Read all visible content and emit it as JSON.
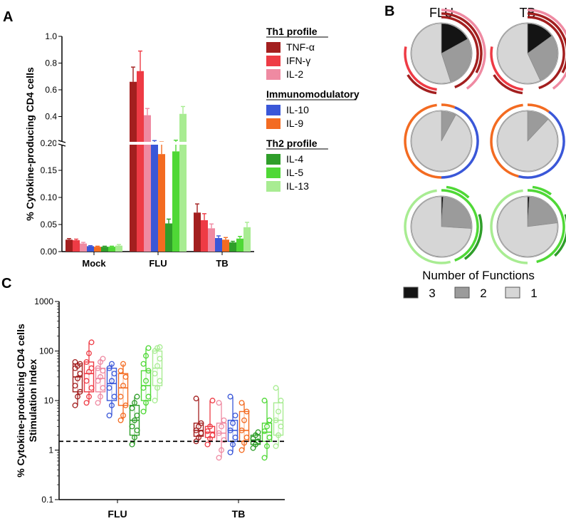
{
  "colors": {
    "tnf": "#a31f1f",
    "ifn": "#ee3b45",
    "il2": "#ef8aa2",
    "il10": "#3a57d8",
    "il9": "#f36b21",
    "il4": "#2f9e2a",
    "il5": "#4fd836",
    "il13": "#a8ec92",
    "f3": "#141414",
    "f2": "#9b9b9b",
    "f1": "#d6d6d6"
  },
  "chart_data": [
    {
      "panel": "A",
      "type": "bar",
      "ylabel": "% Cytokine-producing  CD4 cells",
      "categories": [
        "Mock",
        "FLU",
        "TB"
      ],
      "axis_break": 0.2,
      "lower_ticks": [
        "0.00",
        "0.05",
        "0.10",
        "0.15",
        "0.20"
      ],
      "upper_ticks": [
        "0.4",
        "0.6",
        "0.8",
        "1.0"
      ],
      "legend_groups": [
        {
          "title": "Th1 profile",
          "items": [
            "TNF-α",
            "IFN-γ",
            "IL-2"
          ]
        },
        {
          "title": "Immunomodulatory",
          "items": [
            "IL-10",
            "IL-9"
          ]
        },
        {
          "title": "Th2 profile",
          "items": [
            "IL-4",
            "IL-5",
            "IL-13"
          ]
        }
      ],
      "series": [
        {
          "name": "TNF-α",
          "values": [
            0.022,
            0.66,
            0.072
          ],
          "errors": [
            0.002,
            0.11,
            0.016
          ]
        },
        {
          "name": "IFN-γ",
          "values": [
            0.021,
            0.74,
            0.058
          ],
          "errors": [
            0.002,
            0.15,
            0.012
          ]
        },
        {
          "name": "IL-2",
          "values": [
            0.015,
            0.41,
            0.043
          ],
          "errors": [
            0.002,
            0.05,
            0.008
          ]
        },
        {
          "name": "IL-10",
          "values": [
            0.01,
            0.2,
            0.025
          ],
          "errors": [
            0.001,
            0.02,
            0.004
          ]
        },
        {
          "name": "IL-9",
          "values": [
            0.009,
            0.18,
            0.022
          ],
          "errors": [
            0.001,
            0.03,
            0.004
          ]
        },
        {
          "name": "IL-4",
          "values": [
            0.009,
            0.052,
            0.017
          ],
          "errors": [
            0.001,
            0.008,
            0.002
          ]
        },
        {
          "name": "IL-5",
          "values": [
            0.009,
            0.185,
            0.024
          ],
          "errors": [
            0.001,
            0.038,
            0.004
          ]
        },
        {
          "name": "IL-13",
          "values": [
            0.011,
            0.42,
            0.045
          ],
          "errors": [
            0.002,
            0.055,
            0.009
          ]
        }
      ]
    },
    {
      "panel": "B",
      "type": "pie",
      "columns": [
        "FLU",
        "TB"
      ],
      "rows": [
        "Th1 profile",
        "Immunomodulatory",
        "Th2 profile"
      ],
      "legend_title": "Number of Functions",
      "legend_items": [
        "3",
        "2",
        "1"
      ],
      "pies": [
        {
          "stim": "FLU",
          "row": "Th1 profile",
          "slices": [
            0.17,
            0.28,
            0.55
          ],
          "arcs": [
            {
              "name": "TNF-α",
              "color": "tnf",
              "level": 1,
              "start": 0.0,
              "end": 0.44
            },
            {
              "name": "IFN-γ",
              "color": "tnf",
              "level": 2,
              "start": 0.0,
              "end": 0.33
            },
            {
              "name": "IL-2",
              "color": "il2",
              "level": 3,
              "start": 0.0,
              "end": 0.4
            },
            {
              "name": "IFN-γ",
              "color": "ifn",
              "level": 1,
              "start": 0.52,
              "end": 0.78
            },
            {
              "name": "TNF-α",
              "color": "tnf",
              "level": 2,
              "start": 0.52,
              "end": 0.66
            }
          ]
        },
        {
          "stim": "TB",
          "row": "Th1 profile",
          "slices": [
            0.15,
            0.28,
            0.57
          ],
          "arcs": [
            {
              "name": "TNF-α",
              "color": "tnf",
              "level": 1,
              "start": 0.0,
              "end": 0.45
            },
            {
              "name": "IFN-γ",
              "color": "tnf",
              "level": 2,
              "start": 0.0,
              "end": 0.33
            },
            {
              "name": "IL-2",
              "color": "il2",
              "level": 3,
              "start": 0.0,
              "end": 0.4
            },
            {
              "name": "IFN-γ",
              "color": "ifn",
              "level": 1,
              "start": 0.52,
              "end": 0.78
            },
            {
              "name": "TNF-α",
              "color": "tnf",
              "level": 2,
              "start": 0.52,
              "end": 0.66
            }
          ]
        },
        {
          "stim": "FLU",
          "row": "Immunomodulatory",
          "slices": [
            0.0,
            0.08,
            0.92
          ],
          "arcs": [
            {
              "name": "IL-9",
              "color": "il9",
              "level": 1,
              "start": 0.0,
              "end": 0.06
            },
            {
              "name": "IL-10",
              "color": "il10",
              "level": 1,
              "start": 0.06,
              "end": 0.5
            },
            {
              "name": "IL-9",
              "color": "il9",
              "level": 1,
              "start": 0.5,
              "end": 0.98
            }
          ]
        },
        {
          "stim": "TB",
          "row": "Immunomodulatory",
          "slices": [
            0.0,
            0.12,
            0.88
          ],
          "arcs": [
            {
              "name": "IL-9",
              "color": "il9",
              "level": 1,
              "start": 0.0,
              "end": 0.1
            },
            {
              "name": "IL-10",
              "color": "il10",
              "level": 1,
              "start": 0.1,
              "end": 0.54
            },
            {
              "name": "IL-9",
              "color": "il9",
              "level": 1,
              "start": 0.54,
              "end": 0.98
            }
          ]
        },
        {
          "stim": "FLU",
          "row": "Th2 profile",
          "slices": [
            0.01,
            0.25,
            0.74
          ],
          "arcs": [
            {
              "name": "IL-5",
              "color": "il5",
              "level": 1,
              "start": 0.0,
              "end": 0.44
            },
            {
              "name": "IL-4",
              "color": "il4",
              "level": 2,
              "start": 0.2,
              "end": 0.4
            },
            {
              "name": "IL-13",
              "color": "il13",
              "level": 1,
              "start": 0.46,
              "end": 0.98
            },
            {
              "name": "IL-5",
              "color": "il5",
              "level": 2,
              "start": 0.02,
              "end": 0.12
            }
          ]
        },
        {
          "stim": "TB",
          "row": "Th2 profile",
          "slices": [
            0.01,
            0.22,
            0.77
          ],
          "arcs": [
            {
              "name": "IL-5",
              "color": "il5",
              "level": 1,
              "start": 0.0,
              "end": 0.46
            },
            {
              "name": "IL-4",
              "color": "il4",
              "level": 2,
              "start": 0.2,
              "end": 0.38
            },
            {
              "name": "IL-13",
              "color": "il13",
              "level": 1,
              "start": 0.5,
              "end": 0.98
            },
            {
              "name": "IL-5",
              "color": "il5",
              "level": 2,
              "start": 0.02,
              "end": 0.1
            }
          ]
        }
      ]
    },
    {
      "panel": "C",
      "type": "scatter",
      "yscale": "log",
      "ylabel_line1": "% Cytokine-producing  CD4 cells",
      "ylabel_line2": "Stimulation Index",
      "ylim": [
        0.1,
        1000
      ],
      "yticks": [
        "0.1",
        "1",
        "10",
        "100",
        "1000"
      ],
      "categories": [
        "FLU",
        "TB"
      ],
      "reference_line": 1.5,
      "groups": [
        {
          "stim": "FLU",
          "boxes": [
            {
              "name": "TNF-α",
              "min": 8,
              "q1": 15,
              "median": 30,
              "q3": 55,
              "max": 60,
              "points": [
                8,
                12,
                15,
                20,
                28,
                35,
                45,
                50,
                55,
                60
              ]
            },
            {
              "name": "IFN-γ",
              "min": 9,
              "q1": 15,
              "median": 35,
              "q3": 60,
              "max": 150,
              "points": [
                9,
                12,
                18,
                25,
                38,
                45,
                60,
                90,
                150
              ]
            },
            {
              "name": "IL-2",
              "min": 9,
              "q1": 15,
              "median": 28,
              "q3": 45,
              "max": 70,
              "points": [
                9,
                12,
                18,
                25,
                30,
                40,
                45,
                60,
                70
              ]
            },
            {
              "name": "IL-10",
              "min": 5,
              "q1": 10,
              "median": 22,
              "q3": 45,
              "max": 55,
              "points": [
                5,
                8,
                12,
                18,
                25,
                35,
                45,
                55
              ]
            },
            {
              "name": "IL-9",
              "min": 4,
              "q1": 8,
              "median": 18,
              "q3": 35,
              "max": 55,
              "points": [
                4,
                5,
                8,
                12,
                20,
                30,
                40,
                55
              ]
            },
            {
              "name": "IL-4",
              "min": 1.3,
              "q1": 2,
              "median": 4,
              "q3": 8,
              "max": 12,
              "points": [
                1.3,
                1.8,
                2.5,
                3,
                4,
                5,
                7,
                9,
                12
              ]
            },
            {
              "name": "IL-5",
              "min": 6,
              "q1": 10,
              "median": 20,
              "q3": 40,
              "max": 115,
              "points": [
                6,
                9,
                12,
                18,
                25,
                40,
                55,
                80,
                115
              ]
            },
            {
              "name": "IL-13",
              "min": 10,
              "q1": 20,
              "median": 45,
              "q3": 100,
              "max": 120,
              "points": [
                10,
                18,
                25,
                35,
                50,
                70,
                100,
                115,
                120
              ]
            }
          ]
        },
        {
          "stim": "TB",
          "boxes": [
            {
              "name": "TNF-α",
              "min": 1.5,
              "q1": 1.9,
              "median": 2.5,
              "q3": 3.5,
              "max": 11,
              "points": [
                1.5,
                1.8,
                2.2,
                2.5,
                3,
                3.5,
                11
              ]
            },
            {
              "name": "IFN-γ",
              "min": 1.3,
              "q1": 1.8,
              "median": 2.3,
              "q3": 3,
              "max": 10,
              "points": [
                1.3,
                1.7,
                2,
                2.4,
                3,
                10
              ]
            },
            {
              "name": "IL-2",
              "min": 0.7,
              "q1": 1.5,
              "median": 2.2,
              "q3": 3.5,
              "max": 9,
              "points": [
                0.7,
                1,
                1.6,
                2.2,
                3,
                4,
                9
              ]
            },
            {
              "name": "IL-10",
              "min": 0.9,
              "q1": 1.5,
              "median": 2.5,
              "q3": 4,
              "max": 12,
              "points": [
                0.9,
                1.3,
                1.8,
                2.5,
                3.5,
                5,
                12
              ]
            },
            {
              "name": "IL-9",
              "min": 1,
              "q1": 1.5,
              "median": 2.5,
              "q3": 6,
              "max": 9,
              "points": [
                1,
                1.4,
                1.8,
                2.5,
                4,
                6,
                9
              ]
            },
            {
              "name": "IL-4",
              "min": 1.1,
              "q1": 1.3,
              "median": 1.6,
              "q3": 2,
              "max": 2.3,
              "points": [
                1.1,
                1.3,
                1.5,
                1.7,
                2,
                2.3
              ]
            },
            {
              "name": "IL-5",
              "min": 0.7,
              "q1": 1.5,
              "median": 2.3,
              "q3": 3.5,
              "max": 10,
              "points": [
                0.7,
                1.2,
                1.8,
                2.4,
                3,
                4,
                10
              ]
            },
            {
              "name": "IL-13",
              "min": 1.2,
              "q1": 2,
              "median": 4,
              "q3": 9,
              "max": 18,
              "points": [
                1.2,
                2,
                3,
                4,
                6,
                10,
                18
              ]
            }
          ]
        }
      ]
    }
  ]
}
